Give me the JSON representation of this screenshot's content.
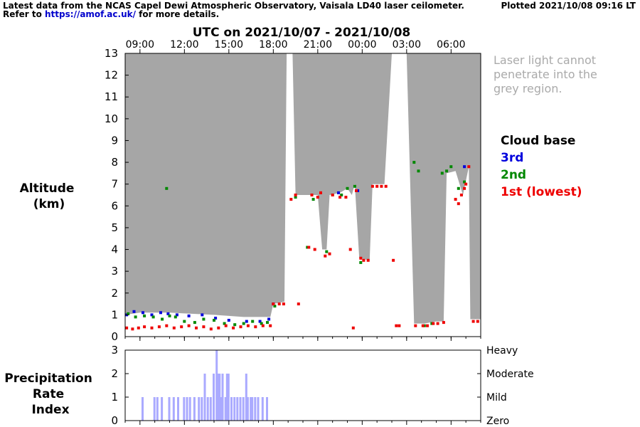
{
  "header": {
    "line1": "Latest data from the NCAS Capel Dewi Atmospheric Observatory, Vaisala LD40 laser ceilometer.",
    "line2_prefix": "Refer to",
    "link_text": "https://amof.ac.uk/",
    "line2_suffix": "for more details.",
    "plotted": "Plotted 2021/10/08 09:16 LT"
  },
  "chart_data": [
    {
      "type": "scatter",
      "title": "UTC on 2021/10/07 - 2021/10/08",
      "ylabel_lines": [
        "Altitude",
        "(km)"
      ],
      "x_ticks": [
        "09:00",
        "12:00",
        "15:00",
        "18:00",
        "21:00",
        "00:00",
        "03:00",
        "06:00"
      ],
      "x_tick_hours": [
        9,
        12,
        15,
        18,
        21,
        24,
        27,
        30
      ],
      "xlim_hours": [
        8.0,
        32.0
      ],
      "ylim": [
        0,
        13
      ],
      "y_ticks": [
        0,
        1,
        2,
        3,
        4,
        5,
        6,
        7,
        8,
        9,
        10,
        11,
        12,
        13
      ],
      "grey_note_lines": [
        "Laser light cannot",
        "penetrate into the",
        "grey region."
      ],
      "legend_title": "Cloud base",
      "legend": [
        {
          "label": "3rd",
          "color": "#0000dd"
        },
        {
          "label": "2nd",
          "color": "#008800"
        },
        {
          "label": "1st (lowest)",
          "color": "#ee0000"
        }
      ],
      "grey_color": "#a6a6a6",
      "grey_region": [
        [
          8.0,
          1.0
        ],
        [
          9.0,
          1.1
        ],
        [
          11.0,
          1.1
        ],
        [
          14.0,
          1.0
        ],
        [
          16.0,
          0.9
        ],
        [
          17.0,
          0.9
        ],
        [
          17.8,
          0.9
        ],
        [
          18.0,
          1.5
        ],
        [
          18.75,
          1.6
        ],
        [
          18.9,
          13
        ],
        [
          19.3,
          13
        ],
        [
          19.5,
          6.5
        ],
        [
          20.3,
          6.5
        ],
        [
          20.5,
          6.5
        ],
        [
          21.0,
          6.5
        ],
        [
          21.3,
          4.0
        ],
        [
          21.6,
          4.0
        ],
        [
          21.8,
          6.5
        ],
        [
          22.5,
          6.6
        ],
        [
          23.0,
          6.8
        ],
        [
          23.3,
          6.5
        ],
        [
          23.5,
          7.0
        ],
        [
          23.8,
          3.6
        ],
        [
          24.5,
          3.5
        ],
        [
          24.7,
          7.0
        ],
        [
          25.5,
          7.0
        ],
        [
          26.0,
          13
        ],
        [
          27.0,
          13
        ],
        [
          27.5,
          0.6
        ],
        [
          28.2,
          0.6
        ],
        [
          29.0,
          0.7
        ],
        [
          29.5,
          0.7
        ],
        [
          29.7,
          7.5
        ],
        [
          30.3,
          7.6
        ],
        [
          30.8,
          6.5
        ],
        [
          31.2,
          7.8
        ],
        [
          31.3,
          0.8
        ],
        [
          32.0,
          0.8
        ]
      ],
      "series": [
        {
          "name": "3rd",
          "color": "#0000dd",
          "x": [
            8.1,
            8.6,
            9.2,
            9.8,
            10.4,
            10.9,
            11.5,
            12.3,
            13.2,
            14.1,
            15.0,
            16.2,
            17.1,
            17.7,
            18.0,
            22.4,
            23.7,
            30.9
          ],
          "y": [
            1.0,
            1.15,
            1.1,
            1.0,
            1.1,
            1.05,
            1.0,
            0.95,
            1.0,
            0.85,
            0.75,
            0.7,
            0.7,
            0.8,
            1.5,
            6.6,
            6.7,
            7.8
          ]
        },
        {
          "name": "2nd",
          "color": "#008800",
          "x": [
            8.2,
            8.7,
            9.3,
            9.9,
            10.5,
            10.8,
            11.0,
            11.4,
            12.0,
            12.7,
            13.3,
            14.0,
            14.7,
            15.4,
            16.0,
            16.6,
            17.2,
            17.6,
            18.1,
            19.5,
            20.3,
            20.7,
            21.6,
            22.0,
            22.6,
            23.0,
            23.5,
            23.9,
            27.5,
            27.8,
            28.2,
            28.7,
            29.4,
            29.7,
            30.0,
            30.5,
            30.9
          ],
          "y": [
            1.05,
            0.9,
            0.95,
            0.9,
            0.8,
            6.8,
            0.95,
            0.9,
            0.7,
            0.65,
            0.8,
            0.75,
            0.6,
            0.55,
            0.6,
            0.7,
            0.6,
            0.65,
            1.4,
            6.4,
            4.1,
            6.3,
            3.9,
            6.5,
            6.5,
            6.8,
            6.9,
            3.4,
            8.0,
            7.6,
            0.5,
            0.6,
            7.5,
            7.6,
            7.8,
            6.8,
            7.1
          ]
        },
        {
          "name": "1st (lowest)",
          "color": "#ee0000",
          "x": [
            8.1,
            8.5,
            8.9,
            9.3,
            9.8,
            10.3,
            10.8,
            11.3,
            11.8,
            12.3,
            12.8,
            13.3,
            13.8,
            14.3,
            14.8,
            15.3,
            15.8,
            16.3,
            16.8,
            17.3,
            17.8,
            18.0,
            18.4,
            18.7,
            19.2,
            19.5,
            19.7,
            20.4,
            20.6,
            20.8,
            21.0,
            21.2,
            21.5,
            21.8,
            22.0,
            22.5,
            22.9,
            23.2,
            23.4,
            23.6,
            23.9,
            24.1,
            24.4,
            24.7,
            25.0,
            25.3,
            25.6,
            26.1,
            26.3,
            26.5,
            27.6,
            28.1,
            28.4,
            28.8,
            29.1,
            29.5,
            30.3,
            30.5,
            30.7,
            30.9,
            31.0,
            31.2,
            31.5,
            31.8
          ],
          "y": [
            0.4,
            0.35,
            0.4,
            0.45,
            0.4,
            0.45,
            0.5,
            0.4,
            0.45,
            0.5,
            0.4,
            0.45,
            0.35,
            0.4,
            0.5,
            0.4,
            0.45,
            0.5,
            0.45,
            0.5,
            0.5,
            1.5,
            1.5,
            1.5,
            6.3,
            6.5,
            1.5,
            4.1,
            6.5,
            4.0,
            6.4,
            6.6,
            3.7,
            3.8,
            6.5,
            6.4,
            6.4,
            4.0,
            0.4,
            6.7,
            3.6,
            3.5,
            3.5,
            6.9,
            6.9,
            6.9,
            6.9,
            3.5,
            0.5,
            0.5,
            0.5,
            0.5,
            0.5,
            0.6,
            0.6,
            0.65,
            6.3,
            6.1,
            6.5,
            6.8,
            7.0,
            7.8,
            0.7,
            0.7
          ]
        }
      ]
    },
    {
      "type": "bar",
      "ylabel_lines": [
        "Precipitation",
        "Rate",
        "Index"
      ],
      "ylim": [
        0,
        3
      ],
      "y_ticks": [
        0,
        1,
        2,
        3
      ],
      "right_labels": [
        "Zero",
        "Mild",
        "Moderate",
        "Heavy"
      ],
      "bar_color": "#aaaaff",
      "x_hours": [
        9.2,
        10.0,
        10.2,
        10.5,
        11.0,
        11.3,
        11.6,
        12.0,
        12.2,
        12.4,
        12.7,
        13.0,
        13.2,
        13.4,
        13.6,
        13.8,
        14.0,
        14.2,
        14.3,
        14.4,
        14.5,
        14.6,
        14.8,
        14.9,
        15.0,
        15.2,
        15.4,
        15.6,
        15.8,
        16.0,
        16.2,
        16.3,
        16.5,
        16.6,
        16.8,
        17.0,
        17.3,
        17.6
      ],
      "values": [
        1,
        1,
        1,
        1,
        1,
        1,
        1,
        1,
        1,
        1,
        1,
        1,
        1,
        2,
        1,
        1,
        2,
        3,
        2,
        2,
        1,
        2,
        1,
        2,
        2,
        1,
        1,
        1,
        1,
        1,
        2,
        1,
        1,
        1,
        1,
        1,
        1,
        1
      ]
    }
  ]
}
